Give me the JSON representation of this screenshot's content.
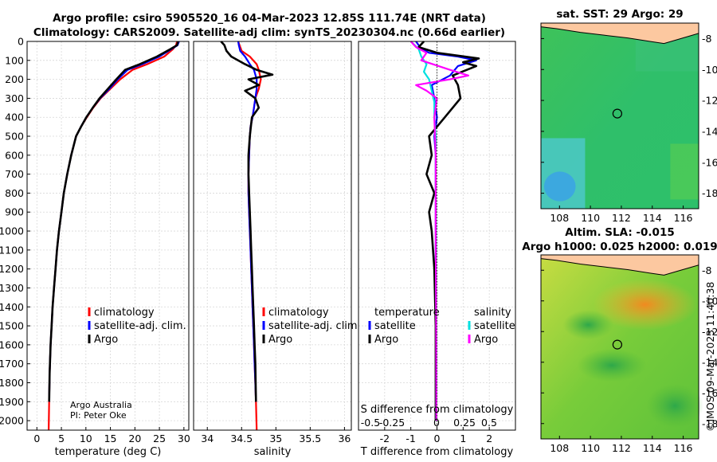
{
  "header": {
    "line1": "Argo profile: csiro 5905520_16 04-Mar-2023 12.85S 111.74E (NRT data)",
    "line2": "Climatology: CARS2009. Satellite-adj clim: synTS_20230304.nc (0.66d earlier)"
  },
  "credit": {
    "line1": "Argo Australia",
    "line2": "PI: Peter Oke"
  },
  "watermark": "©IMOS 09-Mar-2023 11:40:38",
  "colors": {
    "climatology": "#ff0000",
    "satellite": "#0000ff",
    "argo": "#000000",
    "sat_t": "#0000ff",
    "sat_s": "#00e0e0",
    "argo_s": "#ff00ff"
  },
  "chart_data": [
    {
      "id": "temperature",
      "type": "line",
      "title": "",
      "xlabel": "temperature (deg C)",
      "ylabel": "",
      "xlim": [
        -2,
        31
      ],
      "ylim": [
        0,
        2050
      ],
      "xticks": [
        0,
        5,
        10,
        15,
        20,
        25,
        30
      ],
      "yticks": [
        0,
        100,
        200,
        300,
        400,
        500,
        600,
        700,
        800,
        900,
        1000,
        1100,
        1200,
        1300,
        1400,
        1500,
        1600,
        1700,
        1800,
        1900,
        2000
      ],
      "legend": [
        "climatology",
        "satellite-adj. clim.",
        "Argo"
      ],
      "series": [
        {
          "name": "climatology",
          "color": "red",
          "x": [
            28.6,
            28.4,
            27.8,
            26.0,
            22.5,
            19.5,
            17.0,
            15.0,
            13.0,
            11.5,
            10.2,
            9.0,
            8.0,
            7.0,
            6.2,
            5.5,
            5.0,
            4.5,
            4.1,
            3.8,
            3.5,
            3.2,
            3.0,
            2.8,
            2.6,
            2.5,
            2.4
          ],
          "y": [
            0,
            20,
            40,
            80,
            120,
            150,
            200,
            250,
            300,
            350,
            400,
            450,
            500,
            600,
            700,
            800,
            900,
            1000,
            1100,
            1200,
            1300,
            1400,
            1500,
            1600,
            1750,
            1900,
            2050
          ]
        },
        {
          "name": "satellite-adj. clim.",
          "color": "blue",
          "x": [
            29.0,
            28.7,
            27.5,
            25.0,
            21.5,
            18.5,
            16.5,
            14.8,
            12.9,
            11.4,
            10.1,
            9.0,
            8.0,
            7.0,
            6.2,
            5.5,
            5.0,
            4.5,
            4.1,
            3.8,
            3.5,
            3.2,
            3.0,
            2.8,
            2.6,
            2.5
          ],
          "y": [
            0,
            20,
            40,
            80,
            120,
            150,
            200,
            250,
            300,
            350,
            400,
            450,
            500,
            600,
            700,
            800,
            900,
            1000,
            1100,
            1200,
            1300,
            1400,
            1500,
            1600,
            1750,
            1900
          ]
        },
        {
          "name": "Argo",
          "color": "black",
          "x": [
            28.8,
            28.6,
            27.3,
            24.5,
            21.0,
            18.0,
            16.2,
            14.5,
            12.8,
            11.4,
            10.1,
            9.0,
            8.0,
            7.0,
            6.2,
            5.5,
            5.0,
            4.5,
            4.1,
            3.8,
            3.5,
            3.2,
            3.0,
            2.8,
            2.6,
            2.5
          ],
          "y": [
            0,
            20,
            40,
            80,
            120,
            150,
            200,
            250,
            300,
            350,
            400,
            450,
            500,
            600,
            700,
            800,
            900,
            1000,
            1100,
            1200,
            1300,
            1400,
            1500,
            1600,
            1750,
            1900
          ]
        }
      ]
    },
    {
      "id": "salinity",
      "type": "line",
      "xlabel": "salinity",
      "xlim": [
        33.8,
        36.1
      ],
      "ylim": [
        0,
        2050
      ],
      "xticks": [
        34,
        34.5,
        35,
        35.5,
        36
      ],
      "legend": [
        "climatology",
        "satellite-adj. clim.",
        "Argo"
      ],
      "series": [
        {
          "name": "climatology",
          "color": "red",
          "x": [
            34.45,
            34.47,
            34.5,
            34.62,
            34.72,
            34.75,
            34.78,
            34.75,
            34.7,
            34.68,
            34.66,
            34.63,
            34.62,
            34.61,
            34.6,
            34.6,
            34.61,
            34.62,
            34.63,
            34.64,
            34.65,
            34.66,
            34.67,
            34.68,
            34.69,
            34.7,
            34.71,
            34.72
          ],
          "y": [
            0,
            20,
            50,
            80,
            120,
            150,
            200,
            250,
            300,
            350,
            400,
            450,
            500,
            600,
            700,
            800,
            900,
            1000,
            1100,
            1200,
            1300,
            1400,
            1500,
            1600,
            1700,
            1800,
            1900,
            2050
          ]
        },
        {
          "name": "satellite-adj. clim.",
          "color": "blue",
          "x": [
            34.45,
            34.46,
            34.48,
            34.55,
            34.62,
            34.68,
            34.72,
            34.72,
            34.7,
            34.68,
            34.66,
            34.63,
            34.62,
            34.61,
            34.6,
            34.6,
            34.61,
            34.62,
            34.63,
            34.64,
            34.65,
            34.66,
            34.67,
            34.68,
            34.69,
            34.7,
            34.71
          ],
          "y": [
            0,
            20,
            50,
            80,
            120,
            150,
            200,
            250,
            300,
            350,
            400,
            450,
            500,
            600,
            700,
            800,
            900,
            1000,
            1100,
            1200,
            1300,
            1400,
            1500,
            1600,
            1700,
            1800,
            1900
          ]
        },
        {
          "name": "Argo",
          "color": "black",
          "x": [
            34.2,
            34.25,
            34.28,
            34.35,
            34.55,
            34.72,
            34.95,
            34.6,
            34.75,
            34.55,
            34.7,
            34.75,
            34.65,
            34.62,
            34.6,
            34.6,
            34.61,
            34.62,
            34.63,
            34.64,
            34.65,
            34.66,
            34.67,
            34.68,
            34.69,
            34.7,
            34.71
          ],
          "y": [
            0,
            20,
            50,
            80,
            120,
            150,
            175,
            200,
            230,
            260,
            300,
            350,
            400,
            500,
            600,
            700,
            800,
            900,
            1000,
            1100,
            1200,
            1300,
            1400,
            1500,
            1600,
            1700,
            1900
          ]
        }
      ]
    },
    {
      "id": "difference",
      "type": "line",
      "xlabel": "T difference from climatology",
      "xlabel_top": "S difference from climatology",
      "xlim": [
        -3,
        3
      ],
      "ylim": [
        0,
        2050
      ],
      "xticks": [
        -2,
        -1,
        0,
        1,
        2
      ],
      "xticks_top": [
        "-0.5",
        "-0.25",
        "0",
        "0.25",
        "0.5"
      ],
      "legend_temperature": {
        "title": "temperature",
        "items": [
          "satellite",
          "Argo"
        ]
      },
      "legend_salinity": {
        "title": "salinity",
        "items": [
          "satellite",
          "Argo"
        ]
      },
      "series": [
        {
          "name": "temperature satellite",
          "color": "blue",
          "x": [
            -0.8,
            -0.6,
            -0.3,
            0.8,
            1.5,
            0.8,
            0.5,
            -0.2,
            -0.1,
            0.0,
            -0.1,
            -0.05,
            -0.05,
            -0.05,
            -0.05,
            -0.04,
            -0.03,
            -0.03
          ],
          "y": [
            0,
            40,
            60,
            80,
            100,
            130,
            180,
            230,
            300,
            400,
            500,
            600,
            800,
            1000,
            1200,
            1500,
            1800,
            2000
          ]
        },
        {
          "name": "temperature Argo",
          "color": "black",
          "x": [
            -0.5,
            -0.7,
            0.0,
            1.6,
            1.0,
            1.5,
            0.6,
            0.8,
            0.9,
            0.6,
            0.3,
            0.0,
            -0.3,
            -0.2,
            -0.4,
            -0.1,
            -0.3,
            -0.2,
            -0.1,
            -0.05,
            -0.05
          ],
          "y": [
            0,
            30,
            60,
            90,
            110,
            130,
            180,
            230,
            300,
            350,
            400,
            450,
            500,
            600,
            700,
            800,
            900,
            1000,
            1200,
            1500,
            2000
          ]
        },
        {
          "name": "salinity satellite",
          "color": "cyan",
          "x": [
            -1.0,
            -0.7,
            -0.6,
            -0.4,
            -0.5,
            -0.3,
            -0.2,
            -0.1,
            -0.1,
            -0.05,
            -0.05,
            -0.04,
            -0.03,
            -0.02,
            -0.02
          ],
          "y": [
            0,
            40,
            80,
            120,
            160,
            200,
            260,
            320,
            400,
            500,
            700,
            1000,
            1400,
            1800,
            2000
          ]
        },
        {
          "name": "salinity Argo",
          "color": "magenta",
          "x": [
            -1.0,
            -0.8,
            -0.4,
            -0.6,
            0.5,
            1.2,
            0.5,
            -0.8,
            -0.4,
            0.0,
            -0.1,
            -0.05,
            -0.05,
            -0.03,
            -0.02
          ],
          "y": [
            0,
            30,
            60,
            100,
            150,
            180,
            200,
            230,
            260,
            300,
            400,
            600,
            1000,
            1500,
            2000
          ]
        }
      ]
    },
    {
      "id": "sst_map",
      "type": "heatmap",
      "title": "sat. SST: 29 Argo: 29",
      "xticks": [
        108,
        110,
        112,
        114,
        116
      ],
      "yticks": [
        -8,
        -10,
        -12,
        -14,
        -16,
        -18
      ],
      "marker": {
        "lon": 111.74,
        "lat": -12.85
      }
    },
    {
      "id": "sla_map",
      "type": "heatmap",
      "title": "Altim. SLA: -0.015",
      "subtitle": "Argo h1000: 0.025 h2000: 0.019",
      "xticks": [
        108,
        110,
        112,
        114,
        116
      ],
      "yticks": [
        -8,
        -10,
        -12,
        -14,
        -16,
        -18
      ],
      "marker": {
        "lon": 111.74,
        "lat": -12.85
      }
    }
  ]
}
